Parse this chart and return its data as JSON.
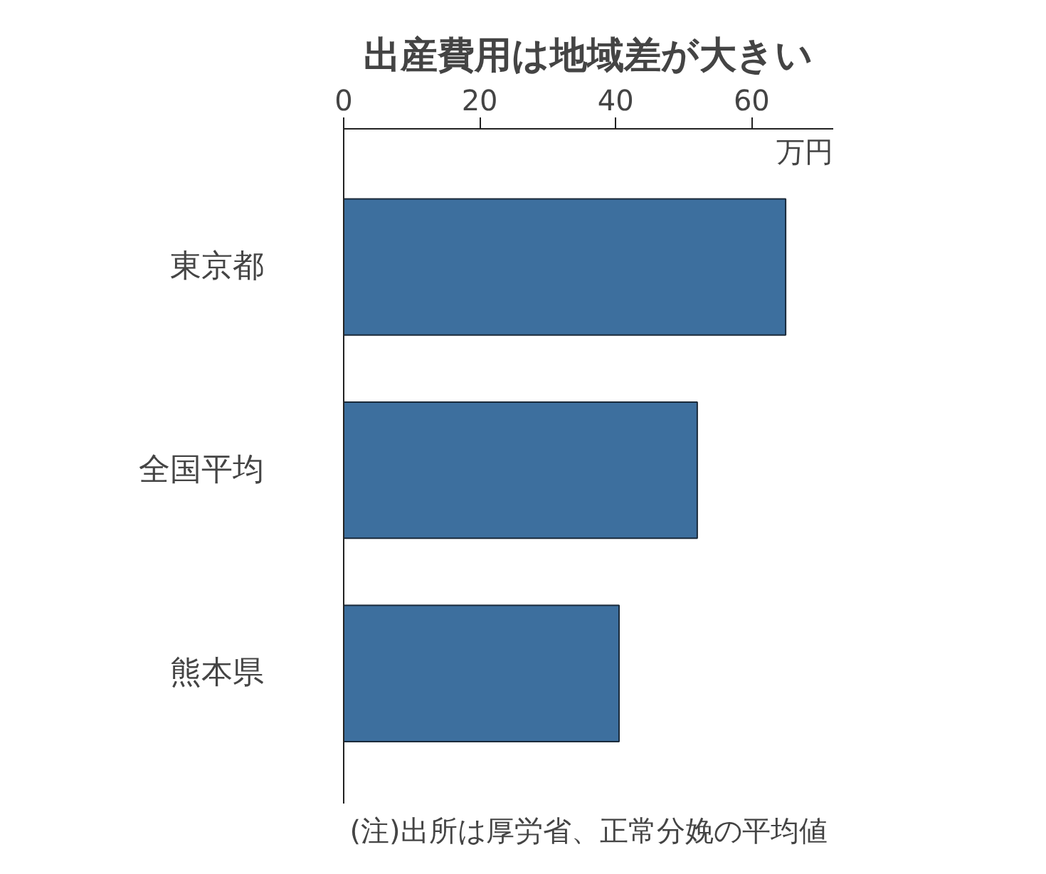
{
  "chart_data": {
    "type": "bar",
    "orientation": "horizontal",
    "title": "出産費用は地域差が大きい",
    "xlabel": "万円",
    "categories": [
      "東京都",
      "全国平均",
      "熊本県"
    ],
    "values": [
      65,
      52,
      40.5
    ],
    "color": "#3d6f9e",
    "xlim": [
      0,
      72
    ],
    "xticks": [
      0,
      20,
      40,
      60
    ],
    "grid": false,
    "annotations": [
      "(注)出所は厚労省、正常分娩の平均値"
    ]
  }
}
